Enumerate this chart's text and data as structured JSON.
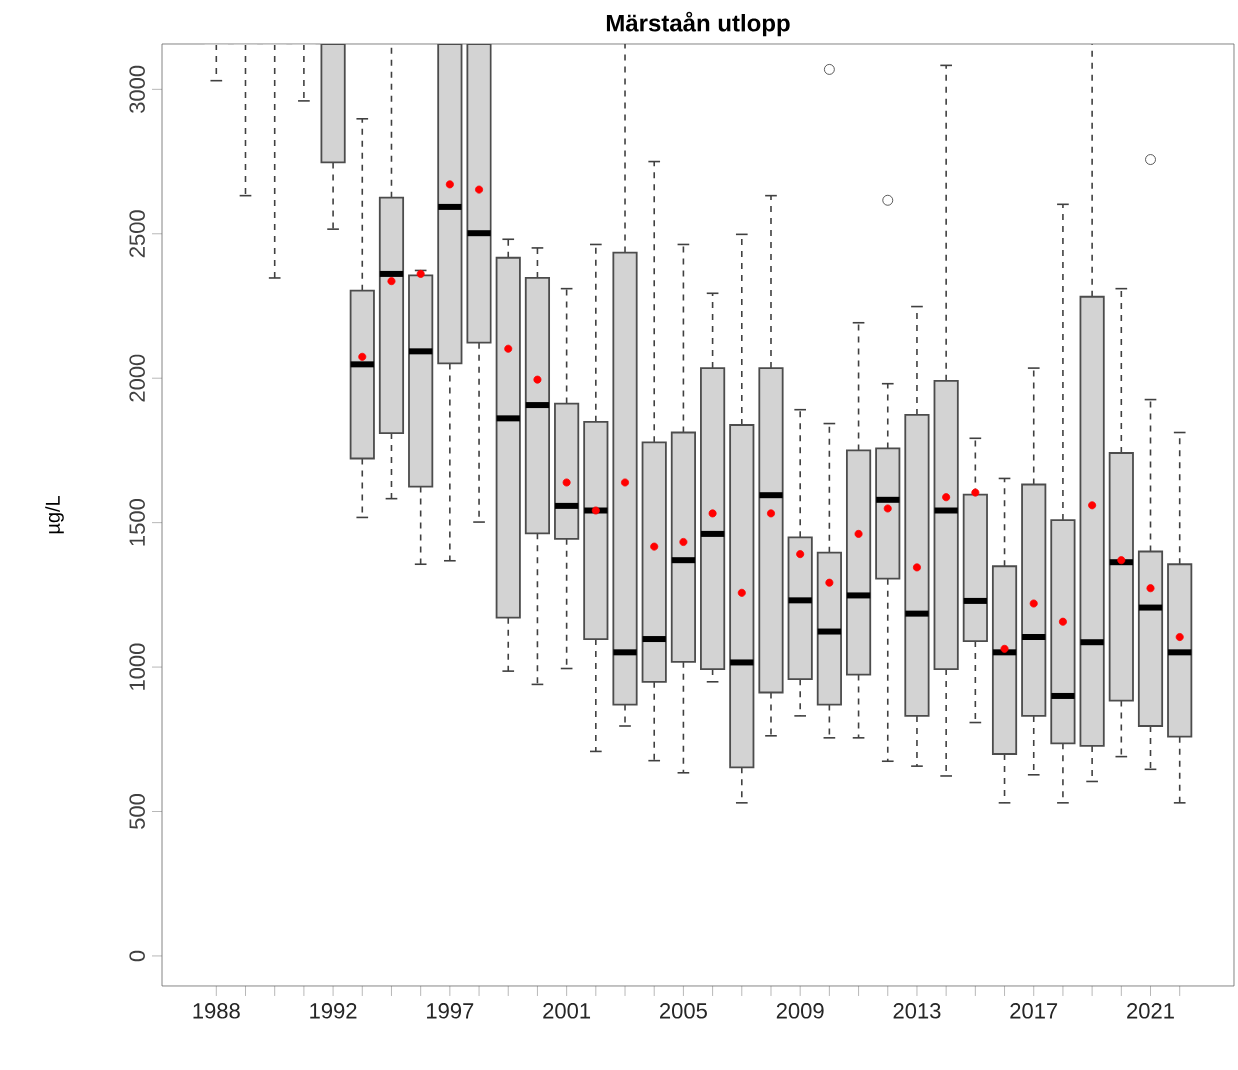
{
  "chart_data": {
    "type": "box",
    "title": "Märstaån utlopp",
    "ylabel": "µg/L",
    "categories": [
      "1988",
      null,
      null,
      null,
      "1992",
      null,
      null,
      null,
      "1997",
      null,
      null,
      null,
      "2001",
      null,
      null,
      null,
      "2005",
      null,
      null,
      null,
      "2009",
      null,
      null,
      null,
      "2013",
      null,
      null,
      null,
      "2017",
      null,
      null,
      null,
      "2021",
      null
    ],
    "ylim": [
      -104,
      3157
    ],
    "yticks": [
      0,
      500,
      1000,
      1500,
      2000,
      2500,
      3000
    ],
    "grid": false,
    "series": [
      {
        "color": "#d3d3d3",
        "boxes": [
          {
            "low": 3030,
            "q1": 3157,
            "median": 3157,
            "q3": 3157,
            "high": 3157
          },
          {
            "low": 2632,
            "q1": 3157,
            "median": 3157,
            "q3": 3157,
            "high": 3157
          },
          {
            "low": 2347,
            "q1": 3157,
            "median": 3157,
            "q3": 3157,
            "high": 3157
          },
          {
            "low": 2960,
            "q1": 3157,
            "median": 3157,
            "q3": 3157,
            "high": 3157
          },
          {
            "low": 2516,
            "q1": 2747,
            "median": 3157,
            "q3": 3157,
            "high": 3157
          },
          {
            "low": 1518,
            "q1": 1722,
            "median": 2048,
            "q3": 2303,
            "high": 2898,
            "mean": 2074
          },
          {
            "low": 1583,
            "q1": 1810,
            "median": 2361,
            "q3": 2625,
            "high": 3157,
            "mean": 2336
          },
          {
            "low": 1356,
            "q1": 1625,
            "median": 2093,
            "q3": 2356,
            "high": 2373,
            "mean": 2361
          },
          {
            "low": 1368,
            "q1": 2051,
            "median": 2593,
            "q3": 3157,
            "high": 3157,
            "mean": 2671
          },
          {
            "low": 1502,
            "q1": 2123,
            "median": 2502,
            "q3": 3157,
            "high": 3157,
            "mean": 2653
          },
          {
            "low": 986,
            "q1": 1171,
            "median": 1861,
            "q3": 2417,
            "high": 2481,
            "mean": 2102
          },
          {
            "low": 940,
            "q1": 1463,
            "median": 1907,
            "q3": 2347,
            "high": 2451,
            "mean": 1995
          },
          {
            "low": 995,
            "q1": 1444,
            "median": 1558,
            "q3": 1912,
            "high": 2310,
            "mean": 1639
          },
          {
            "low": 708,
            "q1": 1097,
            "median": 1542,
            "q3": 1849,
            "high": 2463,
            "mean": 1542
          },
          {
            "low": 796,
            "q1": 870,
            "median": 1051,
            "q3": 2435,
            "high": 3157,
            "mean": 1639
          },
          {
            "low": 676,
            "q1": 949,
            "median": 1097,
            "q3": 1778,
            "high": 2750,
            "mean": 1417
          },
          {
            "low": 634,
            "q1": 1018,
            "median": 1370,
            "q3": 1812,
            "high": 2463,
            "mean": 1433
          },
          {
            "low": 949,
            "q1": 993,
            "median": 1461,
            "q3": 2035,
            "high": 2294,
            "mean": 1532
          },
          {
            "low": 530,
            "q1": 653,
            "median": 1016,
            "q3": 1838,
            "high": 2498,
            "mean": 1257
          },
          {
            "low": 762,
            "q1": 912,
            "median": 1595,
            "q3": 2035,
            "high": 2632,
            "mean": 1532
          },
          {
            "low": 831,
            "q1": 958,
            "median": 1231,
            "q3": 1449,
            "high": 1891,
            "mean": 1391
          },
          {
            "low": 755,
            "q1": 870,
            "median": 1123,
            "q3": 1396,
            "high": 1843,
            "mean": 1292,
            "outliers": [
              3069
            ]
          },
          {
            "low": 755,
            "q1": 974,
            "median": 1248,
            "q3": 1750,
            "high": 2192,
            "mean": 1461
          },
          {
            "low": 674,
            "q1": 1306,
            "median": 1579,
            "q3": 1757,
            "high": 1981,
            "mean": 1549,
            "outliers": [
              2616
            ]
          },
          {
            "low": 657,
            "q1": 831,
            "median": 1185,
            "q3": 1873,
            "high": 2248,
            "mean": 1345
          },
          {
            "low": 623,
            "q1": 993,
            "median": 1542,
            "q3": 1991,
            "high": 3083,
            "mean": 1588
          },
          {
            "low": 808,
            "q1": 1090,
            "median": 1229,
            "q3": 1597,
            "high": 1792,
            "mean": 1604
          },
          {
            "low": 530,
            "q1": 699,
            "median": 1051,
            "q3": 1349,
            "high": 1653,
            "mean": 1063
          },
          {
            "low": 627,
            "q1": 831,
            "median": 1104,
            "q3": 1632,
            "high": 2035,
            "mean": 1220
          },
          {
            "low": 530,
            "q1": 736,
            "median": 900,
            "q3": 1509,
            "high": 2602,
            "mean": 1157
          },
          {
            "low": 604,
            "q1": 727,
            "median": 1086,
            "q3": 2282,
            "high": 3157,
            "mean": 1560
          },
          {
            "low": 690,
            "q1": 884,
            "median": 1363,
            "q3": 1741,
            "high": 2310,
            "mean": 1370
          },
          {
            "low": 646,
            "q1": 796,
            "median": 1206,
            "q3": 1400,
            "high": 1926,
            "mean": 1273,
            "outliers": [
              2757
            ]
          },
          {
            "low": 530,
            "q1": 759,
            "median": 1051,
            "q3": 1356,
            "high": 1812,
            "mean": 1104
          }
        ]
      }
    ]
  }
}
